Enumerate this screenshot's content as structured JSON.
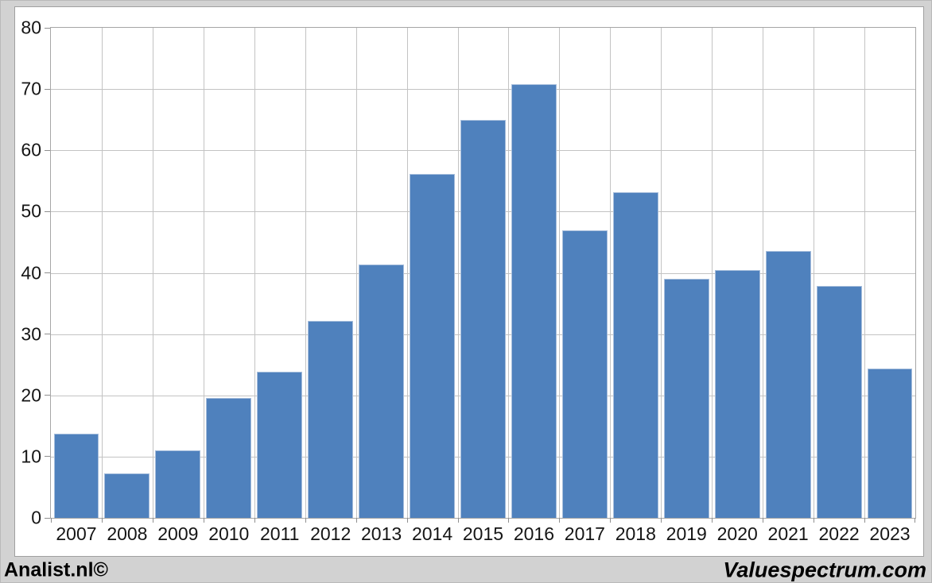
{
  "footer": {
    "left_brand": "Analist.nl©",
    "right_brand": "Valuespectrum.com"
  },
  "colors": {
    "bar_fill": "#4f81bd",
    "bar_border": "#a7bedc",
    "page_background": "#d2d2d2",
    "plot_background": "#ffffff",
    "gridline": "#c3c3c3",
    "axis_frame": "#a6a6a6",
    "label_text": "#151515"
  },
  "chart_data": {
    "type": "bar",
    "title": "",
    "xlabel": "",
    "ylabel": "",
    "categories": [
      "2007",
      "2008",
      "2009",
      "2010",
      "2011",
      "2012",
      "2013",
      "2014",
      "2015",
      "2016",
      "2017",
      "2018",
      "2019",
      "2020",
      "2021",
      "2022",
      "2023"
    ],
    "values": [
      13.7,
      7.3,
      11.0,
      19.6,
      23.9,
      32.1,
      41.4,
      56.1,
      65.0,
      70.8,
      46.9,
      53.1,
      39.0,
      40.4,
      43.6,
      37.9,
      24.4
    ],
    "ylim": [
      0,
      80
    ],
    "ytick_step": 10,
    "ytick_labels": [
      "0",
      "10",
      "20",
      "30",
      "40",
      "50",
      "60",
      "70",
      "80"
    ],
    "grid": true,
    "legend": false,
    "bar_width_fraction": 0.89
  }
}
